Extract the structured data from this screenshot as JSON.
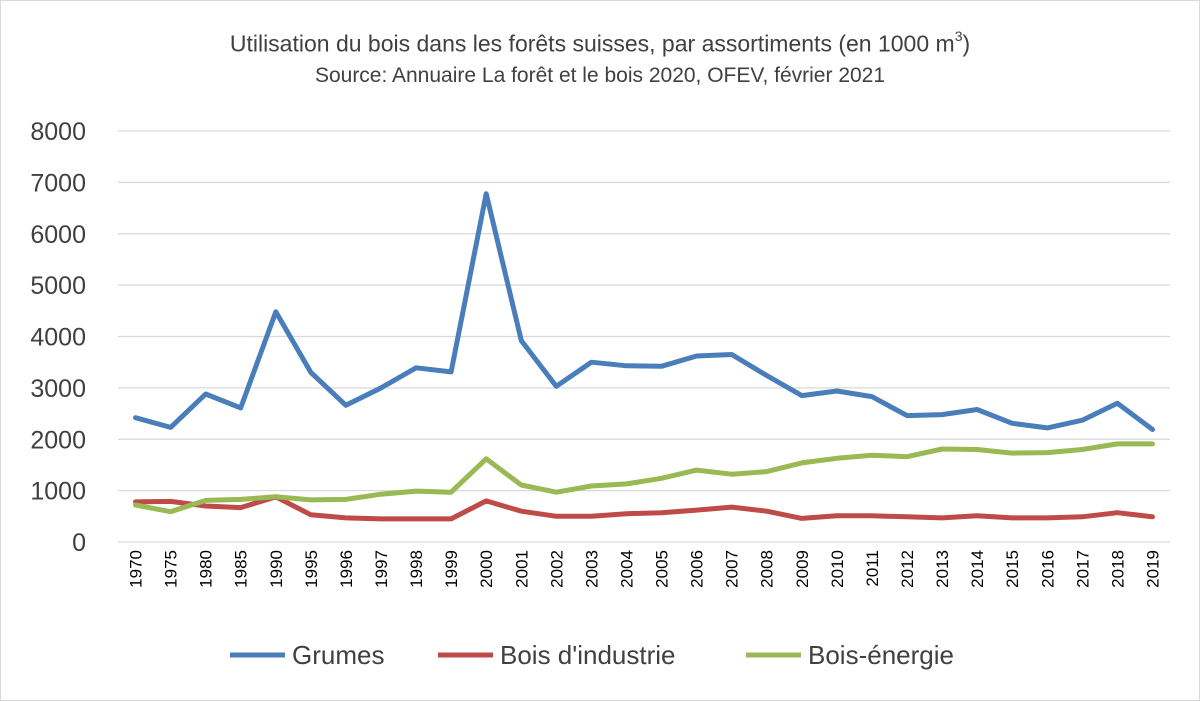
{
  "chart_data": {
    "type": "line",
    "title_main": "Utilisation du bois dans les forêts suisses, par assortiments (en 1000 m",
    "title_sup": "3",
    "title_close": ")",
    "subtitle": "Source: Annuaire La forêt et le bois 2020, OFEV, février 2021",
    "xlabel": "",
    "ylabel": "",
    "ylim": [
      0,
      8000
    ],
    "yticks": [
      "0",
      "1000",
      "2000",
      "3000",
      "4000",
      "5000",
      "6000",
      "7000",
      "8000"
    ],
    "grid": true,
    "legend_position": "bottom",
    "categories": [
      "1970",
      "1975",
      "1980",
      "1985",
      "1990",
      "1995",
      "1996",
      "1997",
      "1998",
      "1999",
      "2000",
      "2001",
      "2002",
      "2003",
      "2004",
      "2005",
      "2006",
      "2007",
      "2008",
      "2009",
      "2010",
      "2011",
      "2012",
      "2013",
      "2014",
      "2015",
      "2016",
      "2017",
      "2018",
      "2019"
    ],
    "series": [
      {
        "name": "Grumes",
        "color": "#4a7ebb",
        "values": [
          2420,
          2230,
          2880,
          2610,
          4480,
          3300,
          2660,
          3000,
          3390,
          3310,
          6780,
          3920,
          3030,
          3500,
          3430,
          3420,
          3620,
          3650,
          3240,
          2850,
          2940,
          2830,
          2460,
          2480,
          2580,
          2310,
          2220,
          2370,
          2700,
          2190
        ]
      },
      {
        "name": "Bois d'industrie",
        "color": "#be4b48",
        "values": [
          780,
          790,
          700,
          670,
          880,
          530,
          470,
          450,
          450,
          450,
          800,
          600,
          500,
          500,
          550,
          570,
          620,
          680,
          600,
          460,
          510,
          510,
          490,
          470,
          510,
          470,
          470,
          490,
          570,
          490
        ]
      },
      {
        "name": "Bois-énergie",
        "color": "#98b954",
        "values": [
          720,
          590,
          810,
          830,
          880,
          820,
          830,
          930,
          990,
          970,
          1620,
          1110,
          970,
          1090,
          1130,
          1240,
          1400,
          1320,
          1370,
          1540,
          1630,
          1690,
          1660,
          1810,
          1800,
          1730,
          1740,
          1800,
          1910,
          1910
        ]
      }
    ]
  }
}
